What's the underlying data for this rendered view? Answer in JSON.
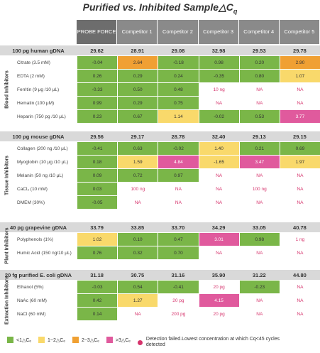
{
  "title": "Purified vs. Inhibited Sample△C",
  "title_sub": "q",
  "columns": [
    "PROBE FORCE",
    "Competitor 1",
    "Competitor 2",
    "Competitor 3",
    "Competitor 4",
    "Competitor 5"
  ],
  "colors": {
    "green": "#7ab648",
    "yellow": "#f9d96b",
    "orange": "#f0a033",
    "pink": "#e05a9d",
    "na_text": "#d6336c"
  },
  "chart_data": {
    "type": "table",
    "sections": [
      {
        "label": "100 pg human gDNA",
        "category": "Blood Inhibitors",
        "baseline": [
          "29.62",
          "28.91",
          "29.08",
          "32.98",
          "29.53",
          "29.78"
        ],
        "rows": [
          {
            "label": "Citrate (3.5 mM)",
            "values": [
              "-0.04",
              "2.64",
              "-0.18",
              "0.98",
              "0.20",
              "2.90"
            ],
            "colors": [
              "green",
              "orange",
              "green",
              "green",
              "green",
              "orange"
            ]
          },
          {
            "label": "EDTA (2 mM)",
            "values": [
              "0.26",
              "0.29",
              "0.24",
              "-0.35",
              "0.80",
              "1.07"
            ],
            "colors": [
              "green",
              "green",
              "green",
              "green",
              "green",
              "yellow"
            ]
          },
          {
            "label": "Ferritin (9 μg /10 μL)",
            "values": [
              "-0.33",
              "0.50",
              "0.48",
              "10 ng",
              "NA",
              "NA"
            ],
            "colors": [
              "green",
              "green",
              "green",
              "conc",
              "na",
              "na"
            ]
          },
          {
            "label": "Hematin (100 μM)",
            "values": [
              "0.99",
              "0.29",
              "0.75",
              "NA",
              "NA",
              "NA"
            ],
            "colors": [
              "green",
              "green",
              "green",
              "na",
              "na",
              "na"
            ]
          },
          {
            "label": "Heparin (750 pg /10 μL)",
            "values": [
              "0.23",
              "0.67",
              "1.14",
              "-0.02",
              "0.53",
              "3.77"
            ],
            "colors": [
              "green",
              "green",
              "yellow",
              "green",
              "green",
              "pink"
            ]
          }
        ]
      },
      {
        "label": "100 pg mouse gDNA",
        "category": "Tissue Inhibitors",
        "baseline": [
          "29.56",
          "29.17",
          "28.78",
          "32.40",
          "29.13",
          "29.15"
        ],
        "rows": [
          {
            "label": "Collagen (200 ng /10 μL)",
            "values": [
              "-0.41",
              "0.63",
              "-0.02",
              "1.40",
              "0.21",
              "0.69"
            ],
            "colors": [
              "green",
              "green",
              "green",
              "yellow",
              "green",
              "green"
            ]
          },
          {
            "label": "Myoglobin (10 μg /10 μL)",
            "values": [
              "0.18",
              "1.59",
              "4.84",
              "-1.65",
              "3.47",
              "1.97"
            ],
            "colors": [
              "green",
              "yellow",
              "pink",
              "yellow",
              "pink",
              "yellow"
            ]
          },
          {
            "label": "Melanin (50 ng /10 μL)",
            "values": [
              "0.09",
              "0.72",
              "0.97",
              "NA",
              "NA",
              "NA"
            ],
            "colors": [
              "green",
              "green",
              "green",
              "na",
              "na",
              "na"
            ]
          },
          {
            "label": "CaCl₂ (10 mM)",
            "values": [
              "0.03",
              "100 ng",
              "NA",
              "NA",
              "100 ng",
              "NA"
            ],
            "colors": [
              "green",
              "conc",
              "na",
              "na",
              "conc",
              "na"
            ]
          },
          {
            "label": "DMEM (30%)",
            "values": [
              "-0.05",
              "NA",
              "NA",
              "NA",
              "NA",
              "NA"
            ],
            "colors": [
              "green",
              "na",
              "na",
              "na",
              "na",
              "na"
            ]
          }
        ]
      },
      {
        "label": "40 pg grapevine gDNA",
        "category": "Plant Inhibitors",
        "baseline": [
          "33.79",
          "33.85",
          "33.70",
          "34.29",
          "33.05",
          "40.78"
        ],
        "rows": [
          {
            "label": "Polyphenols (1%)",
            "values": [
              "1.02",
              "0.10",
              "0.47",
              "3.01",
              "0.98",
              "1 ng"
            ],
            "colors": [
              "yellow",
              "green",
              "green",
              "pink",
              "green",
              "conc"
            ]
          },
          {
            "label": "Humic Acid (150 ng/10 μL)",
            "values": [
              "0.76",
              "0.32",
              "0.70",
              "NA",
              "NA",
              "NA"
            ],
            "colors": [
              "green",
              "green",
              "green",
              "na",
              "na",
              "na"
            ]
          }
        ]
      },
      {
        "label": "20 fg purified E. coli gDNA",
        "category": "Extraction Inhibitors",
        "baseline": [
          "31.18",
          "30.75",
          "31.16",
          "35.90",
          "31.22",
          "44.80"
        ],
        "rows": [
          {
            "label": "Ethanol (5%)",
            "values": [
              "-0.03",
              "0.54",
              "-0.41",
              "20 pg",
              "-0.23",
              "NA"
            ],
            "colors": [
              "green",
              "green",
              "green",
              "conc",
              "green",
              "na"
            ]
          },
          {
            "label": "NaAc (60 mM)",
            "values": [
              "0.42",
              "1.27",
              "20 pg",
              "4.15",
              "NA",
              "NA"
            ],
            "colors": [
              "green",
              "yellow",
              "conc",
              "pink",
              "na",
              "na"
            ]
          },
          {
            "label": "NaCl (60 mM)",
            "values": [
              "0.14",
              "NA",
              "200 pg",
              "20 pg",
              "NA",
              "NA"
            ],
            "colors": [
              "green",
              "na",
              "conc",
              "conc",
              "na",
              "na"
            ]
          }
        ]
      }
    ]
  },
  "legend": [
    {
      "color": "green",
      "label": "<1△Cₑ"
    },
    {
      "color": "yellow",
      "label": "1~2△Cₑ"
    },
    {
      "color": "orange",
      "label": "2~3△Cₑ"
    },
    {
      "color": "pink",
      "label": ">3△Cₑ"
    }
  ],
  "legend_note": "Detection failed.Lowest concentration at which Cq<45 cycles detected"
}
